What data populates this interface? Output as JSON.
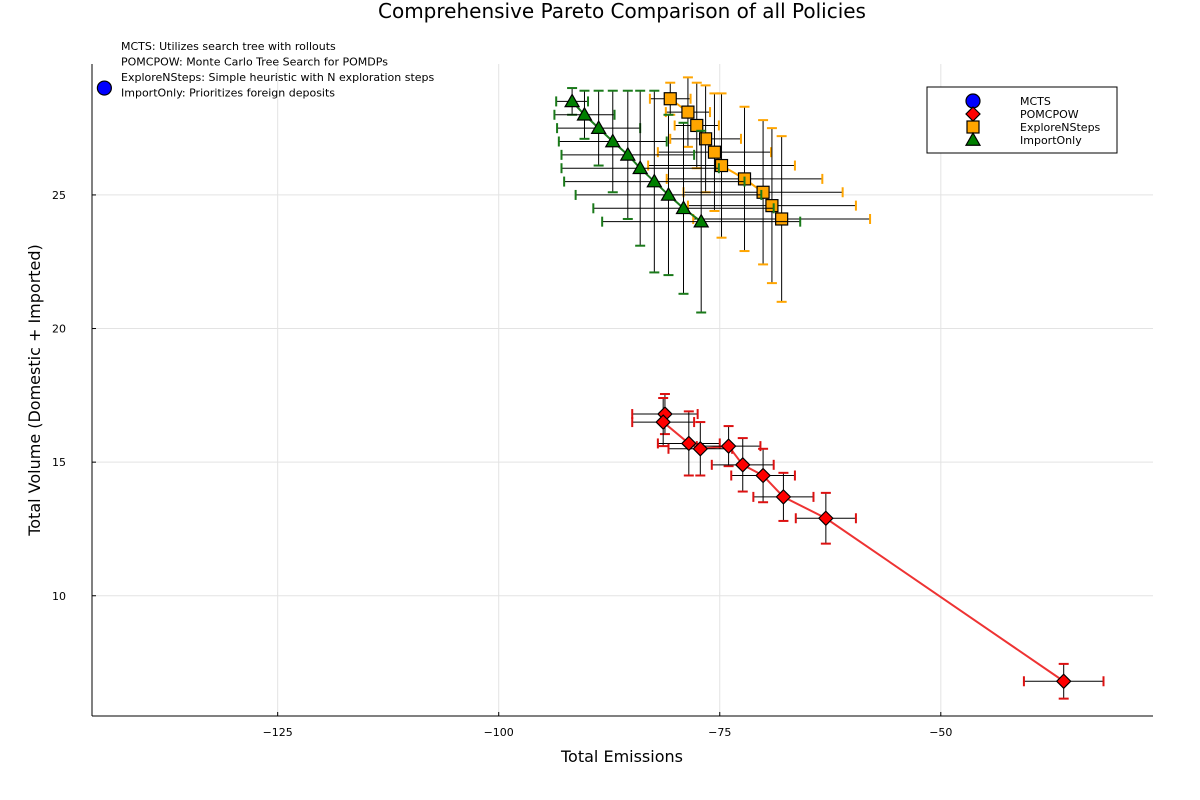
{
  "chart_data": {
    "type": "scatter",
    "title": "Comprehensive Pareto Comparison of all Policies",
    "xlabel": "Total Emissions",
    "ylabel": "Total Volume (Domestic + Imported)",
    "xlim": [
      -146,
      -26
    ],
    "ylim": [
      5.5,
      29.9
    ],
    "x_ticks": [
      -125,
      -100,
      -75,
      -50
    ],
    "y_ticks": [
      10,
      15,
      20,
      25
    ],
    "grid": true,
    "legend_position": "top-right",
    "annotations": [
      "MCTS: Utilizes search tree with rollouts",
      "POMCPOW: Monte Carlo Tree Search for POMDPs",
      "ExploreNSteps: Simple heuristic with N exploration steps",
      "ImportOnly: Prioritizes foreign deposits"
    ],
    "series": [
      {
        "name": "MCTS",
        "marker": "circle",
        "color": "#0000ff",
        "line": false,
        "points": [
          {
            "x": -144.6,
            "y": 29.0
          }
        ]
      },
      {
        "name": "POMCPOW",
        "marker": "diamond",
        "color": "#ff0000",
        "errcolor": "#dd1111",
        "line": true,
        "linecolor": "#ee3333",
        "points": [
          {
            "x": -81.2,
            "y": 16.8,
            "xerr": 3.7,
            "yerr": 0.75
          },
          {
            "x": -81.4,
            "y": 16.5,
            "xerr": 3.5,
            "yerr": 0.9
          },
          {
            "x": -78.5,
            "y": 15.7,
            "xerr": 3.5,
            "yerr": 1.2
          },
          {
            "x": -77.2,
            "y": 15.5,
            "xerr": 3.6,
            "yerr": 1.0
          },
          {
            "x": -74.0,
            "y": 15.6,
            "xerr": 3.6,
            "yerr": 0.75
          },
          {
            "x": -72.4,
            "y": 14.9,
            "xerr": 3.5,
            "yerr": 1.0
          },
          {
            "x": -70.1,
            "y": 14.5,
            "xerr": 3.6,
            "yerr": 1.0
          },
          {
            "x": -67.8,
            "y": 13.7,
            "xerr": 3.4,
            "yerr": 0.9
          },
          {
            "x": -63.0,
            "y": 12.9,
            "xerr": 3.4,
            "yerr": 0.95
          },
          {
            "x": -36.1,
            "y": 6.8,
            "xerr": 4.5,
            "yerr": 0.65
          }
        ]
      },
      {
        "name": "ExploreNSteps",
        "marker": "square",
        "color": "#ffa500",
        "errcolor": "#ffa500",
        "line": true,
        "linecolor": "#ffa500",
        "points": [
          {
            "x": -80.6,
            "y": 28.6,
            "xerr": 2.3,
            "yerr": 0.6
          },
          {
            "x": -78.6,
            "y": 28.1,
            "xerr": 2.5,
            "yerr": 1.3
          },
          {
            "x": -77.6,
            "y": 27.6,
            "xerr": 2.5,
            "yerr": 1.6
          },
          {
            "x": -76.6,
            "y": 27.1,
            "xerr": 4.0,
            "yerr": 2.0
          },
          {
            "x": -75.6,
            "y": 26.6,
            "xerr": 6.4,
            "yerr": 2.2
          },
          {
            "x": -74.8,
            "y": 26.1,
            "xerr": 8.3,
            "yerr": 2.7
          },
          {
            "x": -72.2,
            "y": 25.6,
            "xerr": 8.8,
            "yerr": 2.7
          },
          {
            "x": -70.1,
            "y": 25.1,
            "xerr": 9.0,
            "yerr": 2.7
          },
          {
            "x": -69.1,
            "y": 24.6,
            "xerr": 9.5,
            "yerr": 2.9
          },
          {
            "x": -68.0,
            "y": 24.1,
            "xerr": 10.0,
            "yerr": 3.1
          }
        ]
      },
      {
        "name": "ImportOnly",
        "marker": "triangle",
        "color": "#008000",
        "errcolor": "#1a7a1a",
        "line": true,
        "linecolor": "#1a7a1a",
        "points": [
          {
            "x": -91.7,
            "y": 28.5,
            "xerr": 1.8,
            "yerr": 0.5
          },
          {
            "x": -90.3,
            "y": 28.0,
            "xerr": 3.4,
            "yerr": 0.9
          },
          {
            "x": -88.7,
            "y": 27.5,
            "xerr": 4.7,
            "yerr": 1.4
          },
          {
            "x": -87.1,
            "y": 27.0,
            "xerr": 6.1,
            "yerr": 1.9
          },
          {
            "x": -85.4,
            "y": 26.5,
            "xerr": 7.5,
            "yerr": 2.4
          },
          {
            "x": -84.0,
            "y": 26.0,
            "xerr": 8.9,
            "yerr": 2.9
          },
          {
            "x": -82.4,
            "y": 25.5,
            "xerr": 10.2,
            "yerr": 3.4
          },
          {
            "x": -80.8,
            "y": 25.0,
            "xerr": 10.5,
            "yerr": 3.0
          },
          {
            "x": -79.1,
            "y": 24.5,
            "xerr": 10.2,
            "yerr": 3.2
          },
          {
            "x": -77.1,
            "y": 24.0,
            "xerr": 11.2,
            "yerr": 3.4
          }
        ]
      }
    ]
  }
}
